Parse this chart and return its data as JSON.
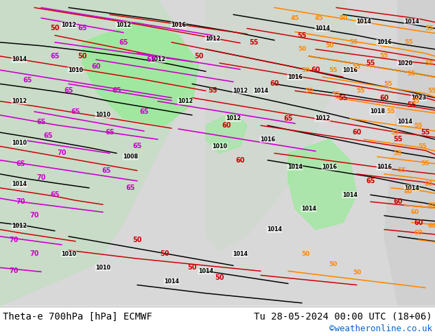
{
  "bottom_left_text": "Theta-e 700hPa [hPa] ECMWF",
  "bottom_right_text": "Tu 28-05-2024 00:00 UTC (18+06)",
  "bottom_credit": "©weatheronline.co.uk",
  "bottom_left_color": "#000000",
  "bottom_right_color": "#000000",
  "credit_color": "#0066cc",
  "bg_color": "#ffffff",
  "fig_width": 6.34,
  "fig_height": 4.9,
  "dpi": 100,
  "font_size_bottom": 10,
  "font_size_credit": 9
}
